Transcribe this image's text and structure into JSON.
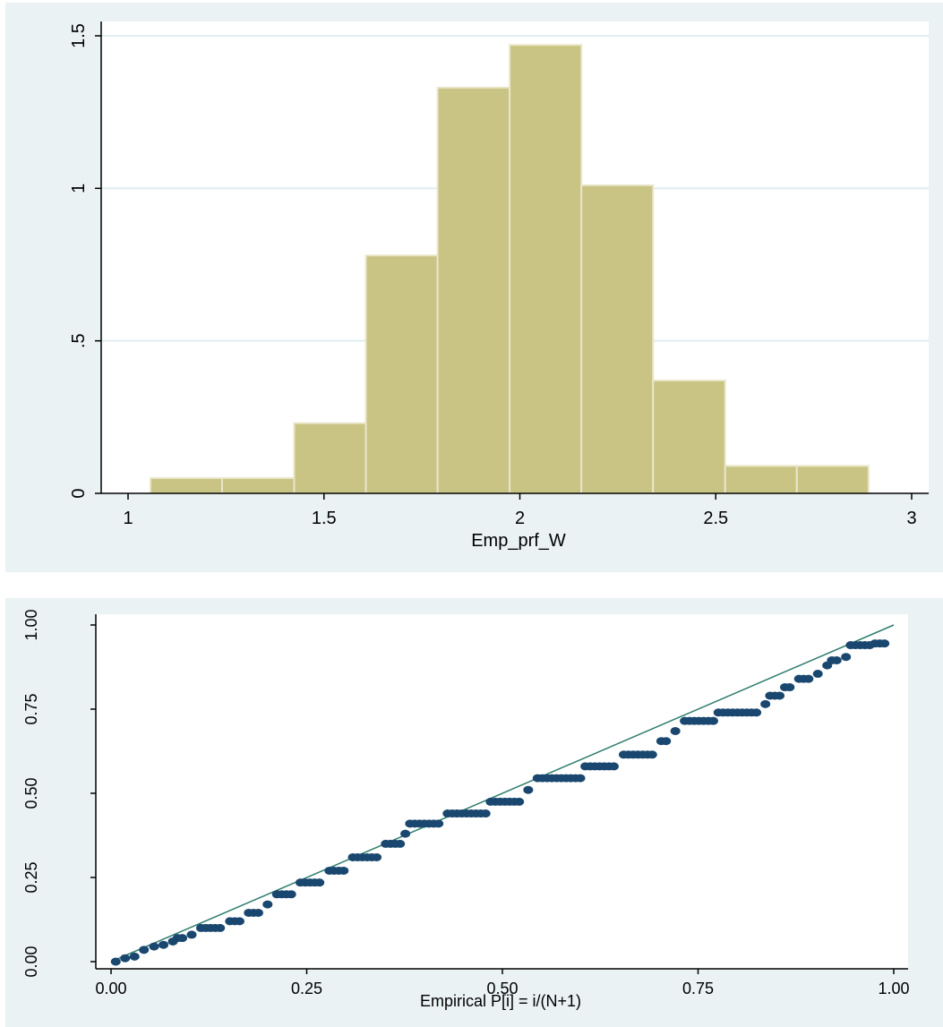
{
  "colors": {
    "panel_bg": "#eaf2f3",
    "plot_bg": "#ffffff",
    "gridline": "#e1ecee",
    "bar_fill": "#c9c384",
    "bar_stroke": "#e9e6c8",
    "marker": "#1a476f",
    "ref_line": "#2e7d6e"
  },
  "chart_data": [
    {
      "type": "bar",
      "subtype": "histogram",
      "xlabel": "Emp_prf_W",
      "ylabel": "",
      "xlim": [
        1,
        3
      ],
      "ylim": [
        0,
        1.5
      ],
      "xticks": [
        1,
        1.5,
        2,
        2.5,
        3
      ],
      "xtick_labels": [
        "1",
        "1.5",
        "2",
        "2.5",
        "3"
      ],
      "yticks": [
        0,
        0.5,
        1,
        1.5
      ],
      "ytick_labels": [
        "0",
        ".5",
        "1",
        "1.5"
      ],
      "grid": true,
      "bins": [
        {
          "start": 1.057,
          "end": 1.24,
          "value": 0.05
        },
        {
          "start": 1.24,
          "end": 1.424,
          "value": 0.05
        },
        {
          "start": 1.424,
          "end": 1.607,
          "value": 0.23
        },
        {
          "start": 1.607,
          "end": 1.79,
          "value": 0.78
        },
        {
          "start": 1.79,
          "end": 1.974,
          "value": 1.33
        },
        {
          "start": 1.974,
          "end": 2.157,
          "value": 1.47
        },
        {
          "start": 2.157,
          "end": 2.34,
          "value": 1.01
        },
        {
          "start": 2.34,
          "end": 2.524,
          "value": 0.37
        },
        {
          "start": 2.524,
          "end": 2.707,
          "value": 0.09
        },
        {
          "start": 2.707,
          "end": 2.89,
          "value": 0.09
        }
      ]
    },
    {
      "type": "scatter",
      "subtype": "p-p plot",
      "xlabel": "Empirical P[i] = i/(N+1)",
      "ylabel": "",
      "xlim": [
        0,
        1
      ],
      "ylim": [
        0,
        1
      ],
      "xticks": [
        0,
        0.25,
        0.5,
        0.75,
        1
      ],
      "xtick_labels": [
        "0.00",
        "0.25",
        "0.50",
        "0.75",
        "1.00"
      ],
      "yticks": [
        0,
        0.25,
        0.5,
        0.75,
        1
      ],
      "ytick_labels": [
        "0.00",
        "0.25",
        "0.50",
        "0.75",
        "1.00"
      ],
      "grid": false,
      "reference_line": {
        "from": [
          0,
          0
        ],
        "to": [
          1,
          1
        ]
      },
      "steps": [
        {
          "x0": 0.006,
          "x1": 0.006,
          "y": 0.0
        },
        {
          "x0": 0.018,
          "x1": 0.024,
          "y": 0.01
        },
        {
          "x0": 0.03,
          "x1": 0.036,
          "y": 0.015
        },
        {
          "x0": 0.042,
          "x1": 0.048,
          "y": 0.035
        },
        {
          "x0": 0.055,
          "x1": 0.061,
          "y": 0.045
        },
        {
          "x0": 0.067,
          "x1": 0.073,
          "y": 0.05
        },
        {
          "x0": 0.079,
          "x1": 0.079,
          "y": 0.06
        },
        {
          "x0": 0.085,
          "x1": 0.097,
          "y": 0.07
        },
        {
          "x0": 0.103,
          "x1": 0.109,
          "y": 0.08
        },
        {
          "x0": 0.115,
          "x1": 0.145,
          "y": 0.1
        },
        {
          "x0": 0.152,
          "x1": 0.17,
          "y": 0.12
        },
        {
          "x0": 0.176,
          "x1": 0.194,
          "y": 0.145
        },
        {
          "x0": 0.2,
          "x1": 0.206,
          "y": 0.17
        },
        {
          "x0": 0.212,
          "x1": 0.236,
          "y": 0.2
        },
        {
          "x0": 0.242,
          "x1": 0.272,
          "y": 0.235
        },
        {
          "x0": 0.279,
          "x1": 0.303,
          "y": 0.27
        },
        {
          "x0": 0.309,
          "x1": 0.345,
          "y": 0.31
        },
        {
          "x0": 0.351,
          "x1": 0.37,
          "y": 0.35
        },
        {
          "x0": 0.376,
          "x1": 0.376,
          "y": 0.38
        },
        {
          "x0": 0.382,
          "x1": 0.424,
          "y": 0.41
        },
        {
          "x0": 0.43,
          "x1": 0.479,
          "y": 0.44
        },
        {
          "x0": 0.485,
          "x1": 0.527,
          "y": 0.475
        },
        {
          "x0": 0.533,
          "x1": 0.539,
          "y": 0.51
        },
        {
          "x0": 0.545,
          "x1": 0.6,
          "y": 0.545
        },
        {
          "x0": 0.606,
          "x1": 0.648,
          "y": 0.58
        },
        {
          "x0": 0.655,
          "x1": 0.697,
          "y": 0.615
        },
        {
          "x0": 0.703,
          "x1": 0.715,
          "y": 0.655
        },
        {
          "x0": 0.721,
          "x1": 0.727,
          "y": 0.685
        },
        {
          "x0": 0.733,
          "x1": 0.77,
          "y": 0.715
        },
        {
          "x0": 0.776,
          "x1": 0.83,
          "y": 0.74
        },
        {
          "x0": 0.836,
          "x1": 0.836,
          "y": 0.765
        },
        {
          "x0": 0.842,
          "x1": 0.855,
          "y": 0.79
        },
        {
          "x0": 0.861,
          "x1": 0.873,
          "y": 0.815
        },
        {
          "x0": 0.879,
          "x1": 0.897,
          "y": 0.84
        },
        {
          "x0": 0.903,
          "x1": 0.909,
          "y": 0.855
        },
        {
          "x0": 0.915,
          "x1": 0.915,
          "y": 0.88
        },
        {
          "x0": 0.921,
          "x1": 0.933,
          "y": 0.895
        },
        {
          "x0": 0.939,
          "x1": 0.939,
          "y": 0.905
        },
        {
          "x0": 0.945,
          "x1": 0.97,
          "y": 0.94
        },
        {
          "x0": 0.976,
          "x1": 0.994,
          "y": 0.945
        }
      ]
    }
  ]
}
